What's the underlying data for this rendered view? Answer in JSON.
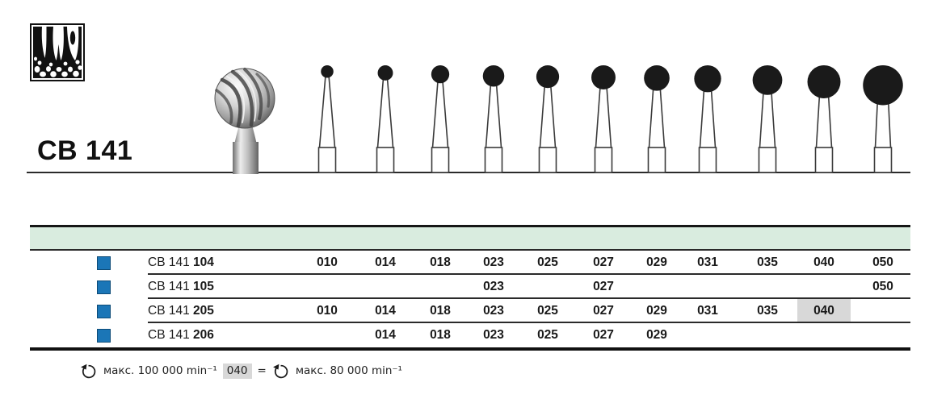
{
  "header": {
    "product_code": "CB 141",
    "teeth_icon": "teeth-pictogram"
  },
  "figure": {
    "photo_bur": "round-carbide-bur-photo",
    "drawn_sizes": [
      "010",
      "014",
      "018",
      "023",
      "025",
      "027",
      "029",
      "031",
      "035",
      "040",
      "050"
    ]
  },
  "table": {
    "columns": [
      "010",
      "014",
      "018",
      "023",
      "025",
      "027",
      "029",
      "031",
      "035",
      "040",
      "050"
    ],
    "rows": [
      {
        "prefix": "CB 141",
        "code": "104",
        "present": [
          "010",
          "014",
          "018",
          "023",
          "025",
          "027",
          "029",
          "031",
          "035",
          "040",
          "050"
        ],
        "highlighted": []
      },
      {
        "prefix": "CB 141",
        "code": "105",
        "present": [
          "023",
          "027",
          "050"
        ],
        "highlighted": []
      },
      {
        "prefix": "CB 141",
        "code": "205",
        "present": [
          "010",
          "014",
          "018",
          "023",
          "025",
          "027",
          "029",
          "031",
          "035",
          "040"
        ],
        "highlighted": [
          "040"
        ]
      },
      {
        "prefix": "CB 141",
        "code": "206",
        "present": [
          "014",
          "018",
          "023",
          "025",
          "027",
          "029"
        ],
        "highlighted": []
      }
    ]
  },
  "footnote": {
    "rotation_icon": "rotation-ccw-icon",
    "text_left": "макс. 100 000 min⁻¹",
    "highlighted_size": "040",
    "equals_sign": "=",
    "text_right": "макс. 80 000 min⁻¹"
  },
  "colors": {
    "header_band_green": "#d9ecdf",
    "swatch_blue": "#1b76b7",
    "highlight_gray": "#d8d8d8",
    "line_black": "#1d1d1d"
  }
}
